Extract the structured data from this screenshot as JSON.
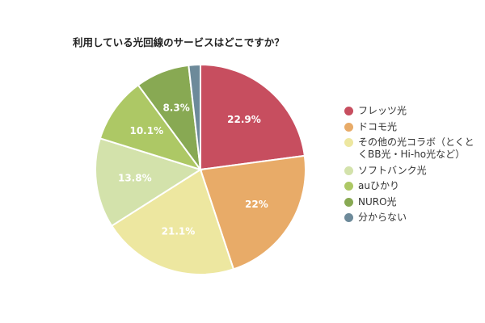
{
  "chart_data": {
    "type": "pie",
    "title": "利用している光回線のサービスはどこですか？",
    "categories": [
      "フレッツ光",
      "ドコモ光",
      "その他の光コラボ（とくと\nくBB光・Hi-ho光など）",
      "ソフトバンク光",
      "auひかり",
      "NURO光",
      "分からない"
    ],
    "values": [
      22.9,
      22,
      21.1,
      13.8,
      10.1,
      8.3,
      1.8
    ],
    "data_labels": [
      "22.9%",
      "22%",
      "21.1%",
      "13.8%",
      "10.1%",
      "8.3%",
      ""
    ],
    "colors": [
      "#c74e5f",
      "#e8ab68",
      "#ede7a0",
      "#d3e2ab",
      "#adc865",
      "#88a953",
      "#6d8a9a"
    ],
    "legend_position": "right"
  }
}
